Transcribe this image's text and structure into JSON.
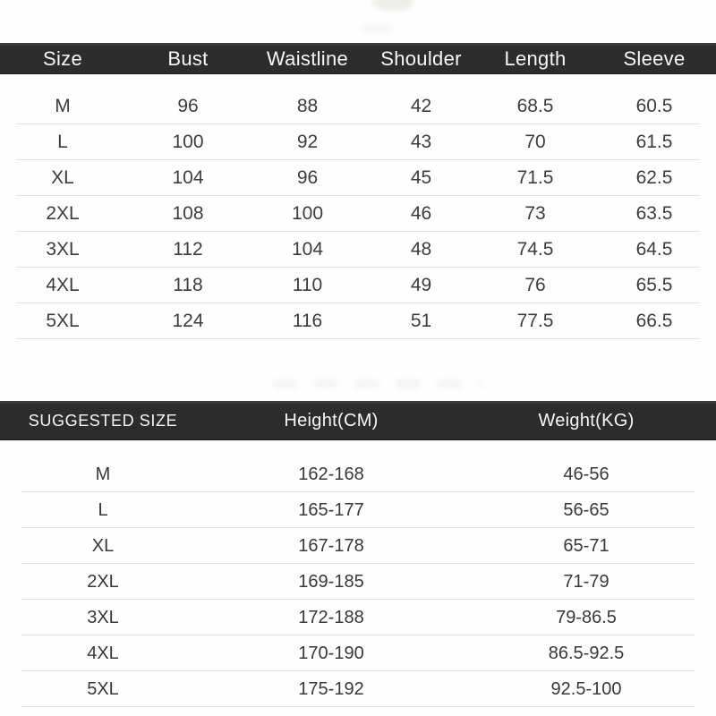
{
  "size_chart": {
    "headers": [
      "Size",
      "Bust",
      "Waistline",
      "Shoulder",
      "Length",
      "Sleeve"
    ],
    "rows": [
      [
        "M",
        "96",
        "88",
        "42",
        "68.5",
        "60.5"
      ],
      [
        "L",
        "100",
        "92",
        "43",
        "70",
        "61.5"
      ],
      [
        "XL",
        "104",
        "96",
        "45",
        "71.5",
        "62.5"
      ],
      [
        "2XL",
        "108",
        "100",
        "46",
        "73",
        "63.5"
      ],
      [
        "3XL",
        "112",
        "104",
        "48",
        "74.5",
        "64.5"
      ],
      [
        "4XL",
        "118",
        "110",
        "49",
        "76",
        "65.5"
      ],
      [
        "5XL",
        "124",
        "116",
        "51",
        "77.5",
        "66.5"
      ]
    ]
  },
  "suggested_chart": {
    "headers": [
      "SUGGESTED SIZE",
      "Height(CM)",
      "Weight(KG)"
    ],
    "rows": [
      [
        "M",
        "162-168",
        "46-56"
      ],
      [
        "L",
        "165-177",
        "56-65"
      ],
      [
        "XL",
        "167-178",
        "65-71"
      ],
      [
        "2XL",
        "169-185",
        "71-79"
      ],
      [
        "3XL",
        "172-188",
        "79-86.5"
      ],
      [
        "4XL",
        "170-190",
        "86.5-92.5"
      ],
      [
        "5XL",
        "175-192",
        "92.5-100"
      ]
    ]
  },
  "colors": {
    "header_bg": "#2c2c2c",
    "header_text": "#f7f7f7",
    "body_text": "#3d3d3d",
    "divider": "#e4e4e4",
    "background": "#fefefe"
  }
}
